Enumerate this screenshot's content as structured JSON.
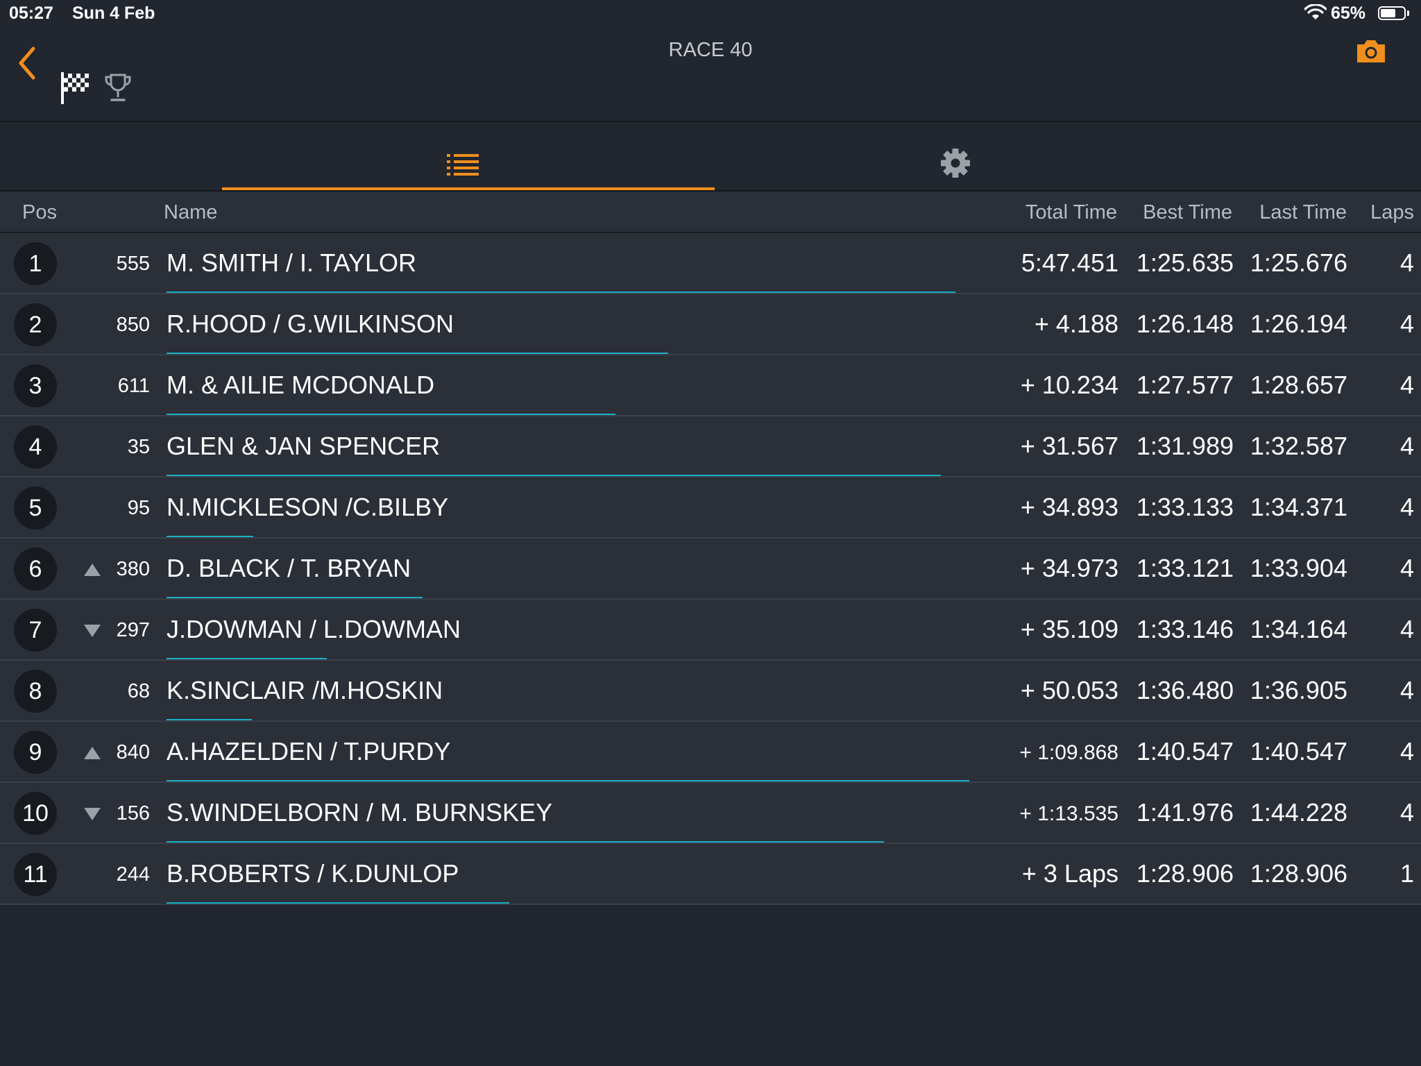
{
  "status_bar": {
    "time": "05:27",
    "date": "Sun 4 Feb",
    "battery": "65%",
    "battery_level": 0.65
  },
  "header": {
    "title": "RACE 40",
    "accent_color": "#f08f1e"
  },
  "tabs": [
    {
      "icon": "list-icon",
      "active": true
    },
    {
      "icon": "gear-icon",
      "active": false
    }
  ],
  "columns": {
    "pos": "Pos",
    "name": "Name",
    "total": "Total Time",
    "best": "Best Time",
    "last": "Last Time",
    "laps": "Laps"
  },
  "rows": [
    {
      "pos": "1",
      "change": "",
      "num": "555",
      "name": "M. SMITH / I. TAYLOR",
      "total": "5:47.451",
      "best": "1:25.635",
      "last": "1:25.676",
      "laps": "4",
      "progress": 0.555
    },
    {
      "pos": "2",
      "change": "",
      "num": "850",
      "name": "R.HOOD / G.WILKINSON",
      "total": "+ 4.188",
      "best": "1:26.148",
      "last": "1:26.194",
      "laps": "4",
      "progress": 0.353
    },
    {
      "pos": "3",
      "change": "",
      "num": "611",
      "name": "M. & AILIE MCDONALD",
      "total": "+ 10.234",
      "best": "1:27.577",
      "last": "1:28.657",
      "laps": "4",
      "progress": 0.316
    },
    {
      "pos": "4",
      "change": "",
      "num": "35",
      "name": "GLEN & JAN SPENCER",
      "total": "+ 31.567",
      "best": "1:31.989",
      "last": "1:32.587",
      "laps": "4",
      "progress": 0.545
    },
    {
      "pos": "5",
      "change": "",
      "num": "95",
      "name": "N.MICKLESON /C.BILBY",
      "total": "+ 34.893",
      "best": "1:33.133",
      "last": "1:34.371",
      "laps": "4",
      "progress": 0.061
    },
    {
      "pos": "6",
      "change": "up",
      "num": "380",
      "name": "D. BLACK / T. BRYAN",
      "total": "+ 34.973",
      "best": "1:33.121",
      "last": "1:33.904",
      "laps": "4",
      "progress": 0.18
    },
    {
      "pos": "7",
      "change": "down",
      "num": "297",
      "name": "J.DOWMAN / L.DOWMAN",
      "total": "+ 35.109",
      "best": "1:33.146",
      "last": "1:34.164",
      "laps": "4",
      "progress": 0.113
    },
    {
      "pos": "8",
      "change": "",
      "num": "68",
      "name": "K.SINCLAIR /M.HOSKIN",
      "total": "+ 50.053",
      "best": "1:36.480",
      "last": "1:36.905",
      "laps": "4",
      "progress": 0.06
    },
    {
      "pos": "9",
      "change": "up",
      "num": "840",
      "name": "A.HAZELDEN / T.PURDY",
      "total": "+ 1:09.868",
      "best": "1:40.547",
      "last": "1:40.547",
      "laps": "4",
      "progress": 0.565,
      "small_total": true
    },
    {
      "pos": "10",
      "change": "down",
      "num": "156",
      "name": "S.WINDELBORN / M. BURNSKEY",
      "total": "+ 1:13.535",
      "best": "1:41.976",
      "last": "1:44.228",
      "laps": "4",
      "progress": 0.505,
      "small_total": true
    },
    {
      "pos": "11",
      "change": "",
      "num": "244",
      "name": "B.ROBERTS / K.DUNLOP",
      "total": "+ 3 Laps",
      "best": "1:28.906",
      "last": "1:28.906",
      "laps": "1",
      "progress": 0.241
    }
  ]
}
